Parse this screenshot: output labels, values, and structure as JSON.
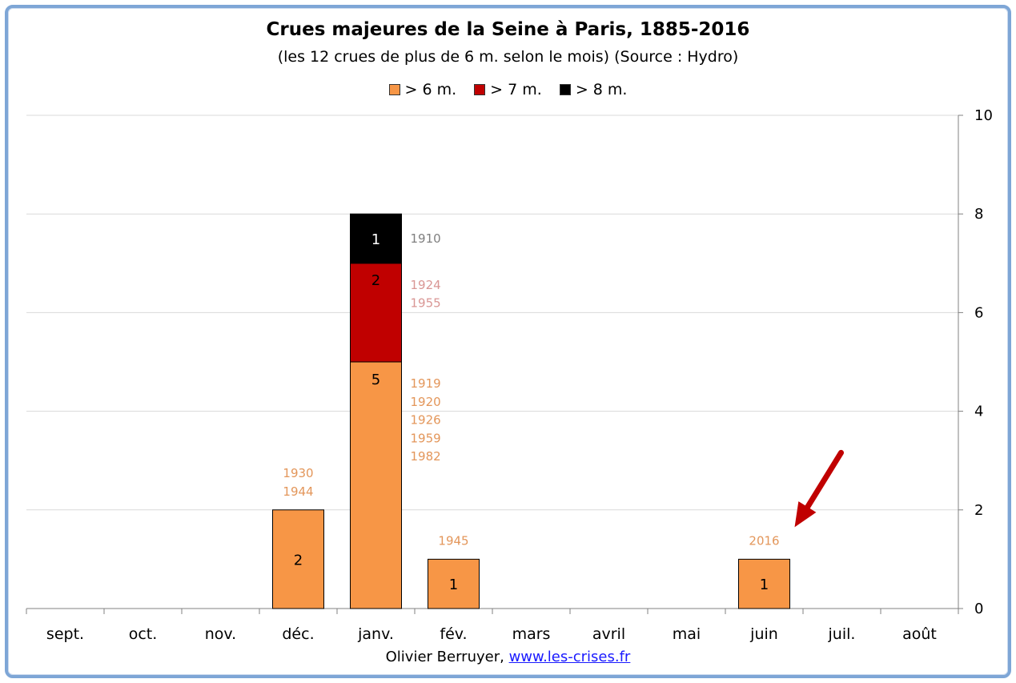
{
  "chart_data": {
    "type": "bar",
    "stacked": true,
    "title": "Crues majeures de la Seine à Paris, 1885-2016",
    "subtitle": "(les 12 crues de plus de 6 m. selon le mois) (Source : Hydro)",
    "categories": [
      "sept.",
      "oct.",
      "nov.",
      "déc.",
      "janv.",
      "fév.",
      "mars",
      "avril",
      "mai",
      "juin",
      "juil.",
      "août"
    ],
    "series": [
      {
        "name": "> 6 m.",
        "color": "#f79646",
        "values": [
          0,
          0,
          0,
          2,
          5,
          1,
          0,
          0,
          0,
          1,
          0,
          0
        ],
        "years": [
          [],
          [],
          [],
          [
            "1930",
            "1944"
          ],
          [
            "1919",
            "1920",
            "1926",
            "1959",
            "1982"
          ],
          [
            "1945"
          ],
          [],
          [],
          [],
          [
            "2016"
          ],
          [],
          []
        ],
        "year_color": "#e3965a"
      },
      {
        "name": "> 7 m.",
        "color": "#c00000",
        "values": [
          0,
          0,
          0,
          0,
          2,
          0,
          0,
          0,
          0,
          0,
          0,
          0
        ],
        "years": [
          [],
          [],
          [],
          [],
          [
            "1924",
            "1955"
          ],
          [],
          [],
          [],
          [],
          [],
          [],
          []
        ],
        "year_color": "#d99694"
      },
      {
        "name": "> 8 m.",
        "color": "#000000",
        "values": [
          0,
          0,
          0,
          0,
          1,
          0,
          0,
          0,
          0,
          0,
          0,
          0
        ],
        "years": [
          [],
          [],
          [],
          [],
          [
            "1910"
          ],
          [],
          [],
          [],
          [],
          [],
          [],
          []
        ],
        "year_color": "#7f7f7f"
      }
    ],
    "ylim": [
      0,
      10
    ],
    "yticks": [
      0,
      2,
      4,
      6,
      8,
      10
    ],
    "y_axis_side": "right",
    "grid": true,
    "legend_position": "top",
    "annotation": {
      "type": "arrow",
      "color": "#c00000",
      "target_category": "juin"
    }
  },
  "footer": {
    "author": "Olivier Berruyer,",
    "link": "www.les-crises.fr"
  }
}
